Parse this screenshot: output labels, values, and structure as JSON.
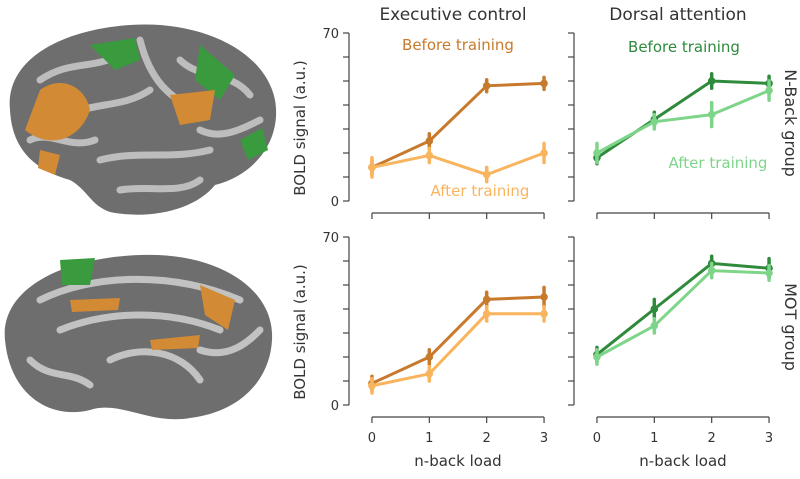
{
  "chart_data": [
    {
      "type": "line",
      "title": "Executive control",
      "ylabel": "BOLD signal (a.u.)",
      "x": [
        0,
        1,
        2,
        3
      ],
      "xlim": [
        -0.4,
        3.4
      ],
      "xticks": [
        0,
        1,
        2,
        3
      ],
      "xtick_labels": false,
      "ylim": [
        -5,
        70
      ],
      "yticks": [
        0,
        70
      ],
      "yminorticks": [
        10,
        20,
        30,
        40,
        50,
        60
      ],
      "series": [
        {
          "name": "Before training",
          "color": "#c87a2c",
          "values": [
            14,
            25,
            48,
            49
          ],
          "errors": [
            3,
            3,
            2.5,
            2.5
          ]
        },
        {
          "name": "After training",
          "color": "#f9b45e",
          "values": [
            14,
            19,
            11,
            20
          ],
          "errors": [
            4,
            3,
            3,
            4
          ]
        }
      ]
    },
    {
      "type": "line",
      "title": "Dorsal attention",
      "row_label": "N-Back group",
      "x": [
        0,
        1,
        2,
        3
      ],
      "xlim": [
        -0.4,
        3.4
      ],
      "xticks": [
        0,
        1,
        2,
        3
      ],
      "xtick_labels": false,
      "ylim": [
        -5,
        70
      ],
      "yticks": [
        0,
        70
      ],
      "ytick_labels": false,
      "yminorticks": [
        10,
        20,
        30,
        40,
        50,
        60
      ],
      "series": [
        {
          "name": "Before training",
          "color": "#2f8a3b",
          "values": [
            18,
            34,
            50,
            49
          ],
          "errors": [
            2.5,
            3,
            3,
            3
          ]
        },
        {
          "name": "After training",
          "color": "#7ed58a",
          "values": [
            20,
            33,
            36,
            46
          ],
          "errors": [
            4,
            3,
            5,
            4
          ]
        }
      ]
    },
    {
      "type": "line",
      "ylabel": "BOLD signal (a.u.)",
      "xlabel": "n-back load",
      "x": [
        0,
        1,
        2,
        3
      ],
      "xlim": [
        -0.4,
        3.4
      ],
      "xticks": [
        0,
        1,
        2,
        3
      ],
      "xtick_labels": true,
      "ylim": [
        -5,
        70
      ],
      "yticks": [
        0,
        70
      ],
      "yminorticks": [
        10,
        20,
        30,
        40,
        50,
        60
      ],
      "series": [
        {
          "color": "#c87a2c",
          "values": [
            9,
            20,
            44,
            45
          ],
          "errors": [
            3,
            3,
            3,
            4
          ]
        },
        {
          "color": "#f9b45e",
          "values": [
            8,
            13,
            38,
            38
          ],
          "errors": [
            3,
            3,
            3,
            3
          ]
        }
      ]
    },
    {
      "type": "line",
      "xlabel": "n-back load",
      "row_label": "MOT group",
      "x": [
        0,
        1,
        2,
        3
      ],
      "xlim": [
        -0.4,
        3.4
      ],
      "xticks": [
        0,
        1,
        2,
        3
      ],
      "xtick_labels": true,
      "ylim": [
        -5,
        70
      ],
      "yticks": [
        0,
        70
      ],
      "ytick_labels": false,
      "yminorticks": [
        10,
        20,
        30,
        40,
        50,
        60
      ],
      "series": [
        {
          "color": "#2f8a3b",
          "values": [
            21,
            40,
            59,
            57
          ],
          "errors": [
            3,
            4,
            3,
            4
          ]
        },
        {
          "color": "#7ed58a",
          "values": [
            20,
            33,
            56,
            55
          ],
          "errors": [
            3,
            3,
            3,
            3
          ]
        }
      ]
    }
  ]
}
